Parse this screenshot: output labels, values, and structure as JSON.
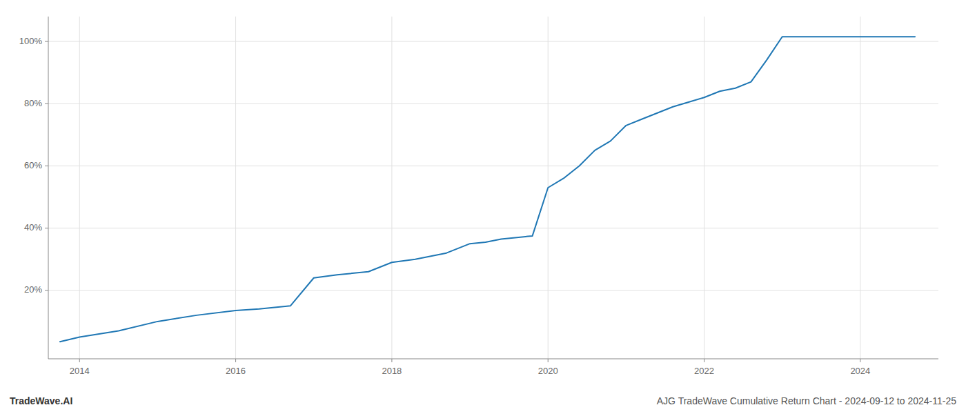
{
  "chart_data": {
    "type": "line",
    "title": "AJG TradeWave Cumulative Return Chart - 2024-09-12 to 2024-11-25",
    "annotations": [
      "TradeWave.AI"
    ],
    "x": [
      2013.75,
      2014.0,
      2014.5,
      2015.0,
      2015.5,
      2016.0,
      2016.3,
      2016.7,
      2017.0,
      2017.3,
      2017.7,
      2018.0,
      2018.3,
      2018.7,
      2019.0,
      2019.2,
      2019.4,
      2019.6,
      2019.8,
      2020.0,
      2020.2,
      2020.4,
      2020.6,
      2020.8,
      2021.0,
      2021.2,
      2021.4,
      2021.6,
      2021.8,
      2022.0,
      2022.2,
      2022.4,
      2022.6,
      2022.8,
      2023.0,
      2023.2,
      2023.5,
      2023.7,
      2024.0,
      2024.3,
      2024.7
    ],
    "values": [
      3.5,
      5.0,
      7.0,
      10.0,
      12.0,
      13.5,
      14.0,
      15.0,
      24.0,
      25.0,
      26.0,
      29.0,
      30.0,
      32.0,
      35.0,
      35.5,
      36.5,
      37.0,
      37.5,
      53.0,
      56.0,
      60.0,
      65.0,
      68.0,
      73.0,
      75.0,
      77.0,
      79.0,
      80.5,
      82.0,
      84.0,
      85.0,
      87.0,
      94.0,
      101.5,
      101.5,
      101.5,
      101.5,
      101.5,
      101.5,
      101.5
    ],
    "color": "#1f77b4",
    "xlim": [
      2013.6,
      2025.0
    ],
    "ylim": [
      -2,
      108
    ],
    "xticks": [
      2014,
      2016,
      2018,
      2020,
      2022,
      2024
    ],
    "yticks": [
      {
        "value": 20,
        "label": "20%"
      },
      {
        "value": 40,
        "label": "40%"
      },
      {
        "value": 60,
        "label": "60%"
      },
      {
        "value": 80,
        "label": "80%"
      },
      {
        "value": 100,
        "label": "100%"
      }
    ],
    "grid": true
  }
}
